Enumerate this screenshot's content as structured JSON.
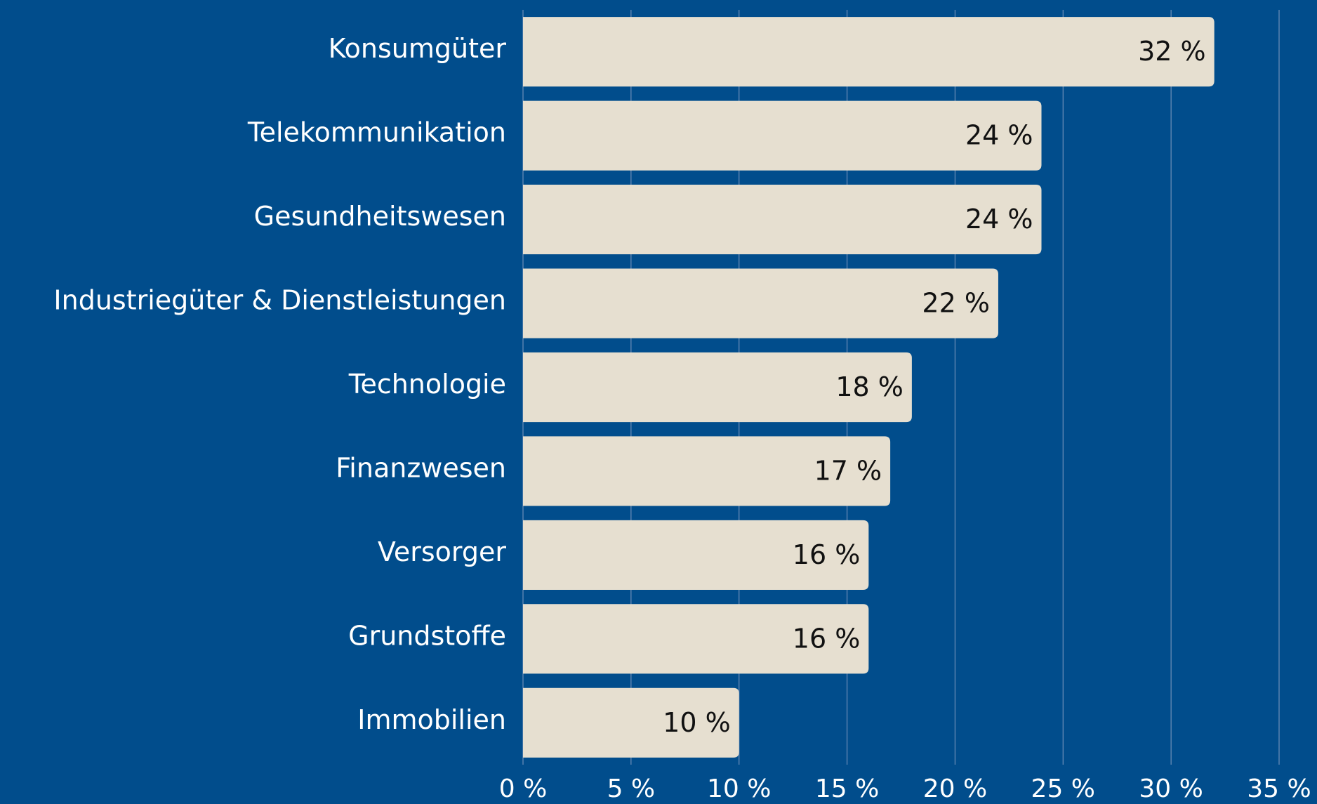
{
  "chart_data": {
    "type": "bar",
    "orientation": "horizontal",
    "categories": [
      "Konsumgüter",
      "Telekommunikation",
      "Gesundheitswesen",
      "Industriegüter & Dienstleistungen",
      "Technologie",
      "Finanzwesen",
      "Versorger",
      "Grundstoffe",
      "Immobilien"
    ],
    "values": [
      32,
      24,
      24,
      22,
      18,
      17,
      16,
      16,
      10
    ],
    "value_labels": [
      "32 %",
      "24 %",
      "24 %",
      "22 %",
      "18 %",
      "17 %",
      "16 %",
      "16 %",
      "10 %"
    ],
    "color": "#e6dfd0",
    "xlim": [
      0,
      35
    ],
    "xticks": [
      {
        "value": 0,
        "label": "0 %"
      },
      {
        "value": 5,
        "label": "5 %"
      },
      {
        "value": 10,
        "label": "10 %"
      },
      {
        "value": 15,
        "label": "15 %"
      },
      {
        "value": 20,
        "label": "20 %"
      },
      {
        "value": 25,
        "label": "25 %"
      },
      {
        "value": 30,
        "label": "30 %"
      },
      {
        "value": 35,
        "label": "35 %"
      }
    ],
    "grid": true
  }
}
